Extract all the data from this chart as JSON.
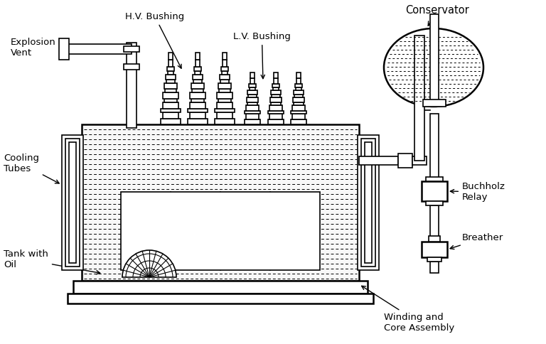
{
  "background_color": "#ffffff",
  "line_color": "#000000",
  "labels": {
    "explosion_vent": "Explosion\nVent",
    "hv_bushing": "H.V. Bushing",
    "lv_bushing": "L.V. Bushing",
    "conservator": "Conservator",
    "cooling_tubes": "Cooling\nTubes",
    "tank_with_oil": "Tank with\nOil",
    "buchholz_relay": "Buchholz\nRelay",
    "breather": "Breather",
    "winding_core": "Winding and\nCore Assembly"
  },
  "font_size": 9.5,
  "fig_width": 7.68,
  "fig_height": 4.84,
  "dpi": 100
}
